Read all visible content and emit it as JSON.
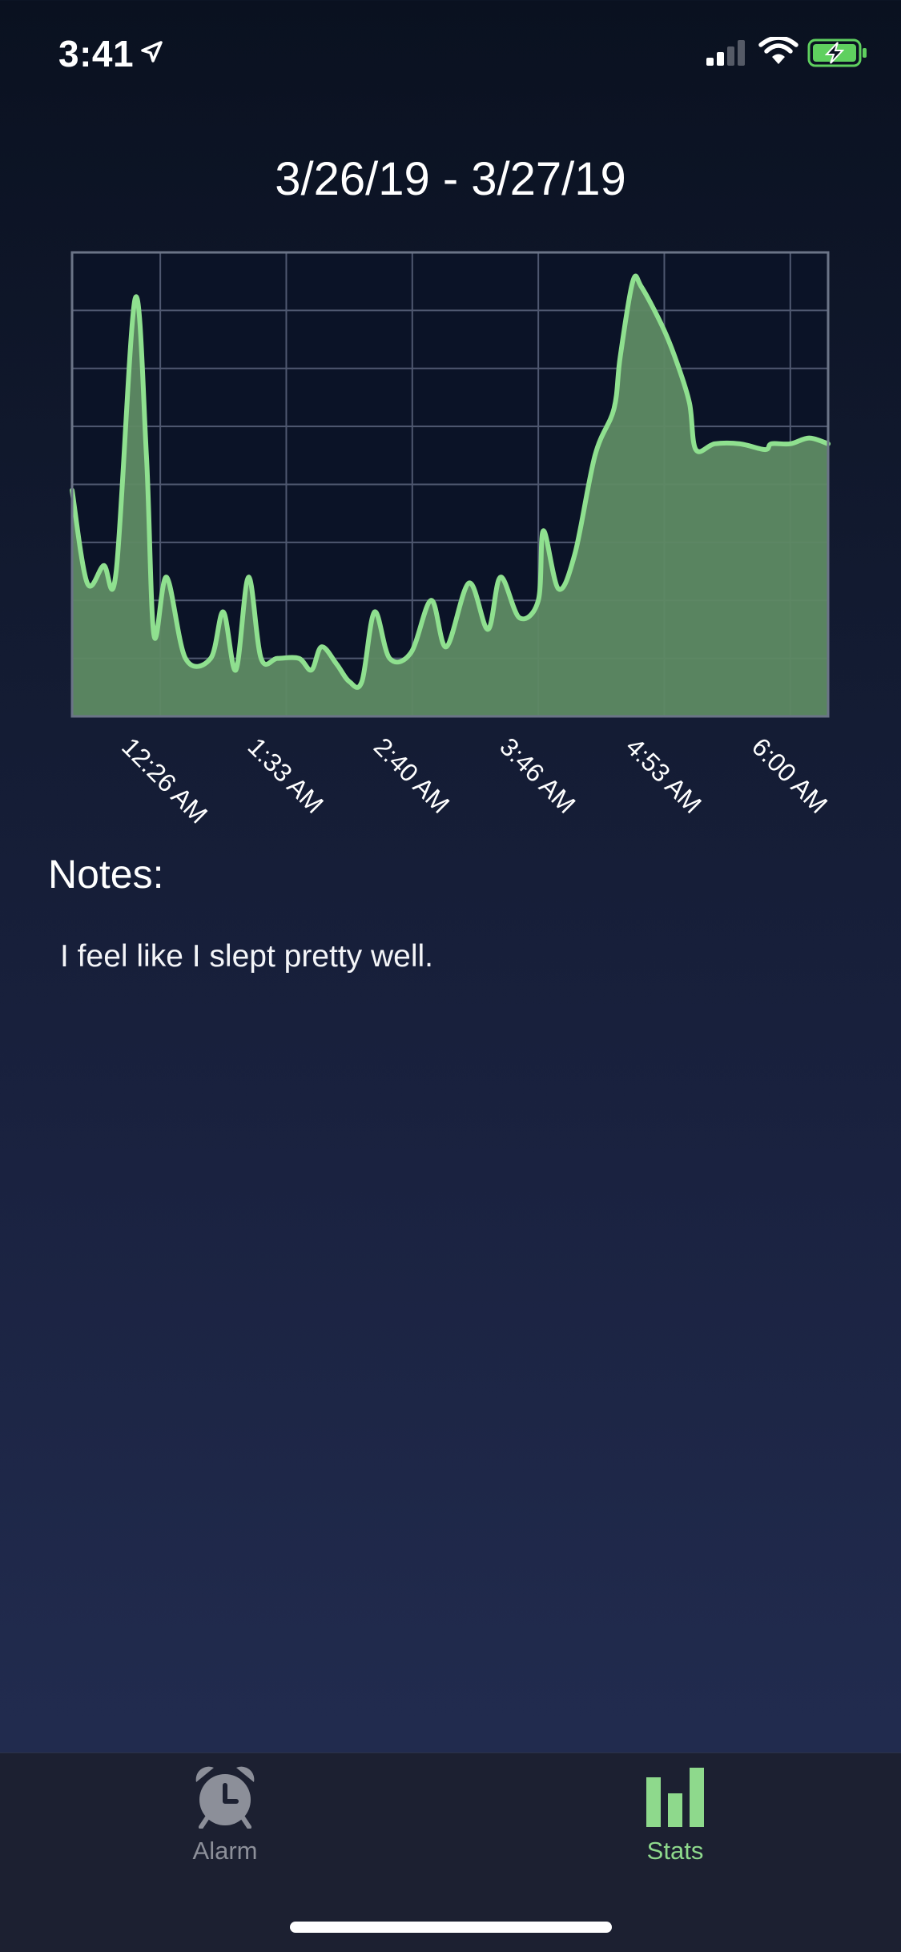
{
  "status_bar": {
    "time": "3:41",
    "icons": [
      "location-arrow-icon",
      "cellular-signal-icon",
      "wifi-icon",
      "battery-charging-icon"
    ],
    "battery_color": "#5fd05f"
  },
  "header": {
    "date_range": "3/26/19 - 3/27/19"
  },
  "chart_data": {
    "type": "area",
    "x_tick_labels": [
      "12:26 AM",
      "1:33 AM",
      "2:40 AM",
      "3:46 AM",
      "4:53 AM",
      "6:00 AM"
    ],
    "x_tick_positions": [
      1,
      2,
      3,
      4,
      5,
      6
    ],
    "xlim": [
      0.3,
      6.3
    ],
    "ylim": [
      0,
      8
    ],
    "y_gridlines": 8,
    "grid": true,
    "line_color": "#8fe08f",
    "fill_color": "#5e8a63",
    "x": [
      0.3,
      0.42,
      0.55,
      0.65,
      0.8,
      0.89,
      0.95,
      1.05,
      1.2,
      1.4,
      1.5,
      1.6,
      1.7,
      1.8,
      1.93,
      2.1,
      2.2,
      2.28,
      2.4,
      2.5,
      2.6,
      2.7,
      2.82,
      2.99,
      3.15,
      3.27,
      3.45,
      3.6,
      3.7,
      3.85,
      4.0,
      4.04,
      4.16,
      4.29,
      4.45,
      4.6,
      4.65,
      4.75,
      4.82,
      4.99,
      5.1,
      5.2,
      5.25,
      5.4,
      5.6,
      5.8,
      5.85,
      6.0,
      6.15,
      6.3
    ],
    "y": [
      3.9,
      2.3,
      2.6,
      2.5,
      7.2,
      4.5,
      1.4,
      2.4,
      1.0,
      1.0,
      1.8,
      0.8,
      2.4,
      1.0,
      1.0,
      1.0,
      0.8,
      1.2,
      0.9,
      0.6,
      0.6,
      1.8,
      1.0,
      1.1,
      2.0,
      1.2,
      2.3,
      1.5,
      2.4,
      1.7,
      2.0,
      3.2,
      2.2,
      2.8,
      4.5,
      5.3,
      6.2,
      7.5,
      7.4,
      6.7,
      6.1,
      5.4,
      4.6,
      4.7,
      4.7,
      4.6,
      4.7,
      4.7,
      4.8,
      4.7
    ]
  },
  "notes": {
    "heading": "Notes:",
    "body": "I feel like I slept pretty well."
  },
  "tab_bar": {
    "tabs": [
      {
        "label": "Alarm",
        "icon": "alarm-clock-icon",
        "active": false,
        "color": "#8c8f99"
      },
      {
        "label": "Stats",
        "icon": "bar-chart-icon",
        "active": true,
        "color": "#8ed98c"
      }
    ]
  }
}
